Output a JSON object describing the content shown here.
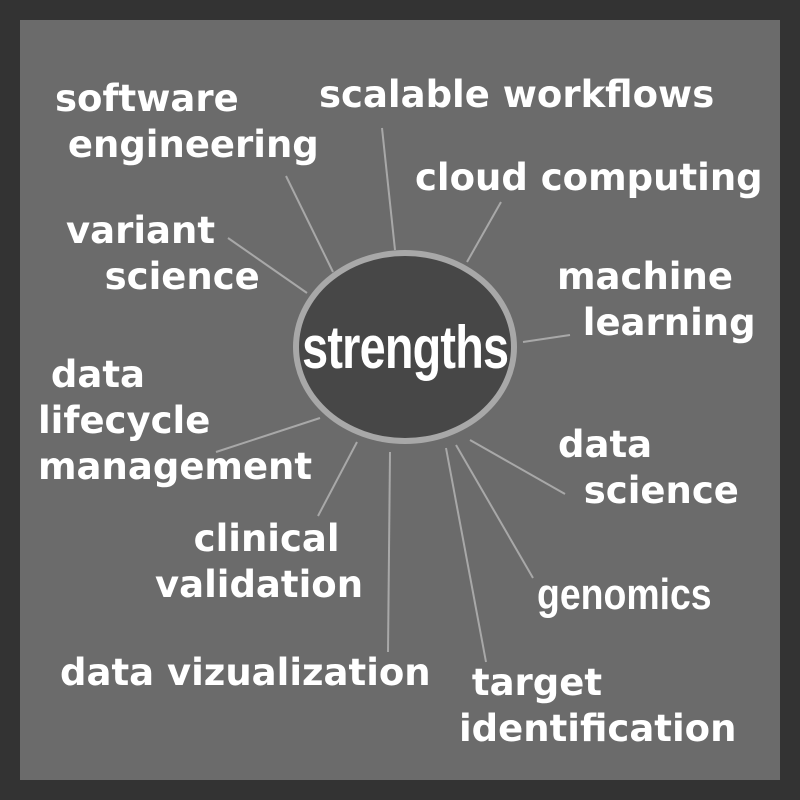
{
  "center": {
    "label": "strengths"
  },
  "spokes": [
    {
      "id": "software-engineering",
      "label": "software\n engineering"
    },
    {
      "id": "scalable-workflows",
      "label": "scalable workflows"
    },
    {
      "id": "cloud-computing",
      "label": "cloud computing"
    },
    {
      "id": "variant-science",
      "label": "variant\n   science"
    },
    {
      "id": "machine-learning",
      "label": "machine\n  learning"
    },
    {
      "id": "data-lifecycle-management",
      "label": " data\nlifecycle\nmanagement"
    },
    {
      "id": "data-science",
      "label": "data\n  science"
    },
    {
      "id": "clinical-validation",
      "label": "   clinical\nvalidation"
    },
    {
      "id": "genomics",
      "label": "genomics"
    },
    {
      "id": "data-vizualization",
      "label": "data vizualization"
    },
    {
      "id": "target-identification",
      "label": " target\nidentification"
    }
  ],
  "colors": {
    "frame": "#333333",
    "panel": "#6b6b6b",
    "hub_fill": "#474747",
    "hub_ring": "#a8a8a8",
    "connector": "#a8a8a8",
    "text": "#ffffff"
  }
}
